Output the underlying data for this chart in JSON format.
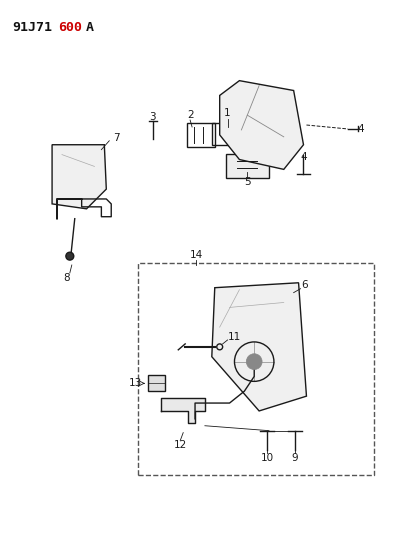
{
  "title_black": "91J71",
  "title_red": "600",
  "title_suffix": "A",
  "background_color": "#ffffff",
  "line_color": "#1a1a1a",
  "fig_width": 3.96,
  "fig_height": 5.33,
  "dpi": 100,
  "label_fontsize": 7.5,
  "title_fontsize": 9.5
}
